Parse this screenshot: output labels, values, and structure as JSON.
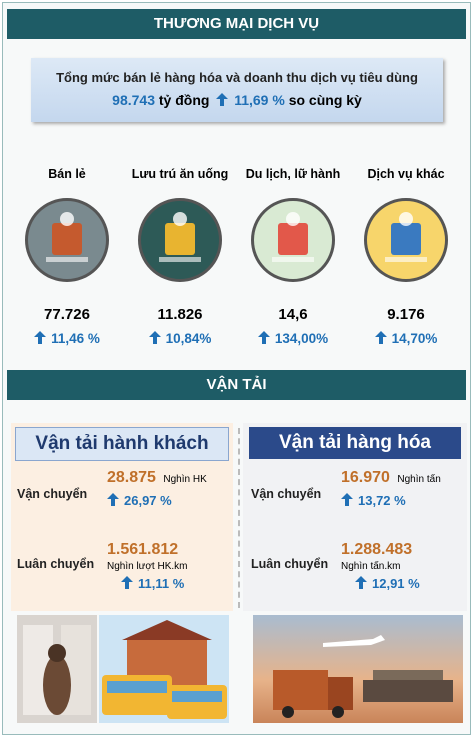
{
  "trade": {
    "title": "THƯƠNG MẠI DỊCH VỤ",
    "summary": {
      "line1": "Tổng mức bán lẻ hàng hóa và doanh thu dịch vụ tiêu dùng",
      "value": "98.743",
      "unit": "tỷ đồng",
      "growth": "11,69 %",
      "compare": "so cùng kỳ"
    },
    "items": [
      {
        "label": "Bán lẻ",
        "value": "77.726",
        "growth": "11,46 %"
      },
      {
        "label": "Lưu trú ăn uống",
        "value": "11.826",
        "growth": "10,84%"
      },
      {
        "label": "Du lịch, lữ hành",
        "value": "14,6",
        "growth": "134,00%"
      },
      {
        "label": "Dịch vụ khác",
        "value": "9.176",
        "growth": "14,70%"
      }
    ]
  },
  "transport": {
    "title": "VẬN TẢI",
    "passenger": {
      "title": "Vận tải hành khách",
      "rows": [
        {
          "label": "Vận chuyển",
          "value": "28.875",
          "unit": "Nghìn HK",
          "growth": "26,97 %"
        },
        {
          "label": "Luân chuyển",
          "value": "1.561.812",
          "unit": "Nghìn lượt HK.km",
          "growth": "11,11 %"
        }
      ]
    },
    "cargo": {
      "title": "Vận tải hàng hóa",
      "rows": [
        {
          "label": "Vận chuyển",
          "value": "16.970",
          "unit": "Nghìn tấn",
          "growth": "13,72 %"
        },
        {
          "label": "Luân chuyển",
          "value": "1.288.483",
          "unit": "Nghìn tấn.km",
          "growth": "12,91 %"
        }
      ]
    }
  }
}
